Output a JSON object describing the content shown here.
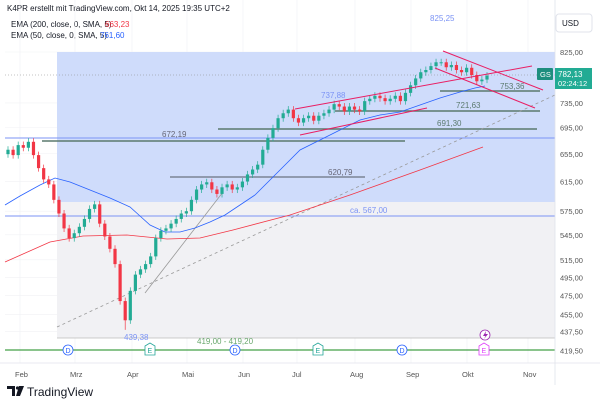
{
  "header": {
    "credit": "K4PR erstellt mit TradingView.com, Okt 14, 2025 19:35 UTC+2",
    "ema200_label": "EMA (200, close, 0, SMA, 5)",
    "ema200_value": "663,23",
    "ema50_label": "EMA (50, close, 0, SMA, 5)",
    "ema50_value": "761,60"
  },
  "currency": "USD",
  "ticker_badge": "GS",
  "last_price": "782,13",
  "countdown": "02:24:12",
  "brand": "TradingView",
  "colors": {
    "up": "#22ab94",
    "down": "#f23645",
    "ema200": "#f23645",
    "ema50": "#2962ff",
    "zone": "#cfdcfb",
    "level": "#5b7a6e",
    "channel": "#e91e63"
  },
  "annotations": {
    "high": "825,25",
    "low": "439,38",
    "range": "419,00 - 419,20",
    "level_737": "737,88",
    "level_753": "753,36",
    "level_721": "721,63",
    "level_691": "691,30",
    "level_672": "672,19",
    "level_620": "620,79",
    "level_567": "ca. 567,00"
  },
  "events": [
    {
      "type": "D",
      "label": "D"
    },
    {
      "type": "E",
      "label": "E"
    },
    {
      "type": "D",
      "label": "D"
    },
    {
      "type": "E",
      "label": "E"
    },
    {
      "type": "D",
      "label": "D"
    },
    {
      "type": "E",
      "label": "E"
    }
  ],
  "chart_data": {
    "type": "candlestick",
    "title": "",
    "scale": "log",
    "ylim": [
      419.5,
      825
    ],
    "x_tick_labels": [
      "Feb",
      "Mrz",
      "Apr",
      "Mai",
      "Jun",
      "Jul",
      "Aug",
      "Sep",
      "Okt",
      "Nov"
    ],
    "y_tick_labels": [
      "825,00",
      "735,00",
      "695,00",
      "655,00",
      "615,00",
      "575,00",
      "545,00",
      "515,00",
      "495,00",
      "475,00",
      "455,00",
      "437,50",
      "419,50"
    ],
    "y_tick_values": [
      825,
      735,
      695,
      655,
      615,
      575,
      545,
      515,
      495,
      475,
      455,
      437.5,
      419.5
    ],
    "closes": [
      661,
      653,
      668,
      664,
      673,
      653,
      634,
      618,
      611,
      590,
      572,
      553,
      541,
      547,
      555,
      565,
      578,
      584,
      559,
      543,
      528,
      510,
      469,
      449,
      480,
      498,
      504,
      510,
      519,
      541,
      550,
      553,
      559,
      565,
      572,
      575,
      590,
      604,
      611,
      614,
      604,
      598,
      607,
      611,
      604,
      607,
      615,
      625,
      632,
      639,
      661,
      679,
      694,
      710,
      718,
      724,
      710,
      703,
      710,
      714,
      706,
      714,
      718,
      724,
      733,
      729,
      721,
      729,
      724,
      721,
      738,
      742,
      747,
      743,
      738,
      742,
      747,
      738,
      752,
      765,
      777,
      788,
      792,
      799,
      806,
      806,
      797,
      801,
      792,
      788,
      796,
      783,
      772,
      775,
      782
    ],
    "horizontal_levels": [
      753.36,
      721.63,
      691.3,
      672.19,
      620.79,
      567,
      419.1
    ],
    "series": [
      {
        "name": "EMA 200",
        "last": 663.23
      },
      {
        "name": "EMA 50",
        "last": 761.6
      }
    ],
    "grid": true
  }
}
